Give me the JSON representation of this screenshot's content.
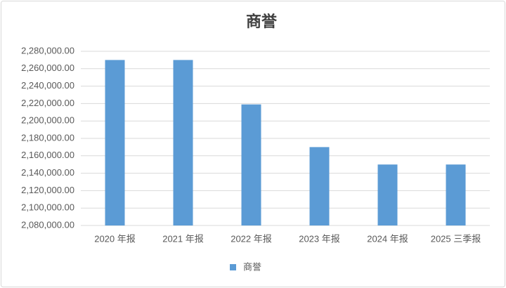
{
  "chart_data": {
    "type": "bar",
    "title": "商誉",
    "categories": [
      "2020 年报",
      "2021 年报",
      "2022 年报",
      "2023 年报",
      "2024 年报",
      "2025 三季报"
    ],
    "series": [
      {
        "name": "商誉",
        "color": "#5b9bd5",
        "values": [
          2270000,
          2270000,
          2219000,
          2170000,
          2150000,
          2150000
        ]
      }
    ],
    "ylim": [
      2080000,
      2280000
    ],
    "yticks": [
      {
        "value": 2080000,
        "label": "2,080,000.00"
      },
      {
        "value": 2100000,
        "label": "2,100,000.00"
      },
      {
        "value": 2120000,
        "label": "2,120,000.00"
      },
      {
        "value": 2140000,
        "label": "2,140,000.00"
      },
      {
        "value": 2160000,
        "label": "2,160,000.00"
      },
      {
        "value": 2180000,
        "label": "2,180,000.00"
      },
      {
        "value": 2200000,
        "label": "2,200,000.00"
      },
      {
        "value": 2220000,
        "label": "2,220,000.00"
      },
      {
        "value": 2240000,
        "label": "2,240,000.00"
      },
      {
        "value": 2260000,
        "label": "2,260,000.00"
      },
      {
        "value": 2280000,
        "label": "2,280,000.00"
      }
    ],
    "grid": true,
    "legend": "bottom"
  }
}
